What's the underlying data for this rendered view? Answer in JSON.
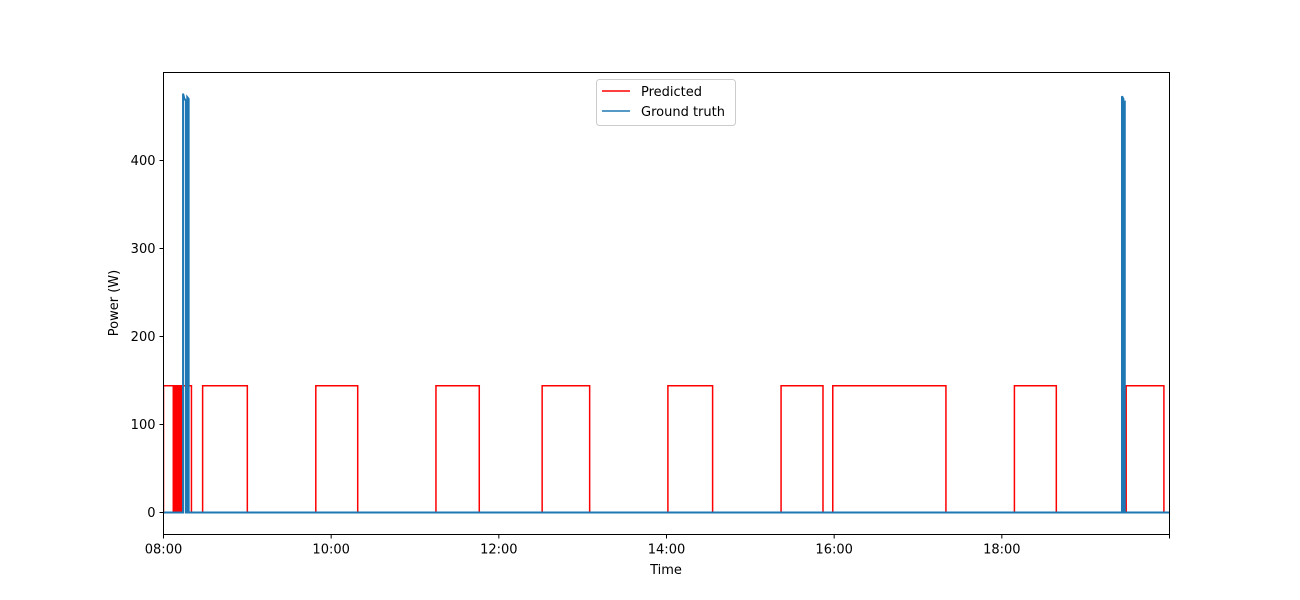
{
  "chart_data": {
    "type": "line",
    "title": "",
    "xlabel": "Time",
    "ylabel": "Power (W)",
    "xlim": [
      "08:00",
      "20:00"
    ],
    "ylim": [
      -25,
      500
    ],
    "x_ticks": [
      "08:00",
      "10:00",
      "12:00",
      "14:00",
      "16:00",
      "18:00"
    ],
    "y_ticks": [
      0,
      100,
      200,
      300,
      400
    ],
    "legend": {
      "placement": "top-center",
      "entries": [
        {
          "name": "Predicted",
          "color": "#ff0000"
        },
        {
          "name": "Ground truth",
          "color": "#1f77b4"
        }
      ]
    },
    "series": [
      {
        "name": "Predicted",
        "color": "#ff0000",
        "points": [
          [
            "08:00",
            0
          ],
          [
            "08:00",
            144
          ],
          [
            "08:07",
            144
          ],
          [
            "08:07",
            0
          ],
          [
            "08:08",
            0
          ],
          [
            "08:08",
            144
          ],
          [
            "08:09",
            144
          ],
          [
            "08:09",
            0
          ],
          [
            "08:10",
            0
          ],
          [
            "08:10",
            144
          ],
          [
            "08:11",
            144
          ],
          [
            "08:11",
            0
          ],
          [
            "08:12",
            0
          ],
          [
            "08:12",
            144
          ],
          [
            "08:13",
            144
          ],
          [
            "08:13",
            0
          ],
          [
            "08:14",
            0
          ],
          [
            "08:14",
            144
          ],
          [
            "08:16",
            144
          ],
          [
            "08:16",
            0
          ],
          [
            "08:18",
            0
          ],
          [
            "08:18",
            144
          ],
          [
            "08:20",
            144
          ],
          [
            "08:20",
            0
          ],
          [
            "08:28",
            0
          ],
          [
            "08:28",
            144
          ],
          [
            "09:00",
            144
          ],
          [
            "09:00",
            0
          ],
          [
            "09:49",
            0
          ],
          [
            "09:49",
            144
          ],
          [
            "10:19",
            144
          ],
          [
            "10:19",
            0
          ],
          [
            "11:15",
            0
          ],
          [
            "11:15",
            144
          ],
          [
            "11:46",
            144
          ],
          [
            "11:46",
            0
          ],
          [
            "12:31",
            0
          ],
          [
            "12:31",
            144
          ],
          [
            "13:05",
            144
          ],
          [
            "13:05",
            0
          ],
          [
            "14:01",
            0
          ],
          [
            "14:01",
            144
          ],
          [
            "14:33",
            144
          ],
          [
            "14:33",
            0
          ],
          [
            "15:22",
            0
          ],
          [
            "15:22",
            144
          ],
          [
            "15:52",
            144
          ],
          [
            "15:52",
            0
          ],
          [
            "15:59",
            0
          ],
          [
            "15:59",
            144
          ],
          [
            "17:20",
            144
          ],
          [
            "17:20",
            0
          ],
          [
            "18:09",
            0
          ],
          [
            "18:09",
            144
          ],
          [
            "18:39",
            144
          ],
          [
            "18:39",
            0
          ],
          [
            "19:29",
            0
          ],
          [
            "19:29",
            144
          ],
          [
            "19:56",
            144
          ],
          [
            "19:56",
            0
          ]
        ]
      },
      {
        "name": "Ground truth",
        "color": "#1f77b4",
        "points": [
          [
            "08:00",
            0
          ],
          [
            "08:14",
            0
          ],
          [
            "08:14",
            476
          ],
          [
            "08:15",
            470
          ],
          [
            "08:16",
            468
          ],
          [
            "08:16",
            0
          ],
          [
            "08:17",
            0
          ],
          [
            "08:17",
            472
          ],
          [
            "08:18",
            470
          ],
          [
            "08:18",
            0
          ],
          [
            "19:26",
            0
          ],
          [
            "19:26",
            473
          ],
          [
            "19:27",
            470
          ],
          [
            "19:27",
            0
          ],
          [
            "19:28",
            0
          ],
          [
            "19:28",
            468
          ],
          [
            "19:28",
            0
          ],
          [
            "20:00",
            0
          ]
        ]
      }
    ]
  }
}
